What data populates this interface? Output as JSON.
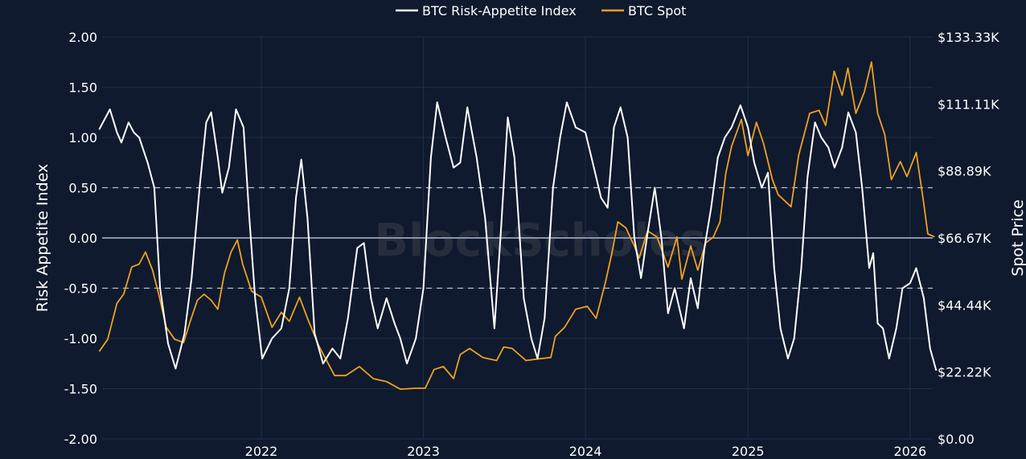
{
  "chart_data": {
    "type": "line",
    "watermark": "BlockScholes",
    "legend": {
      "position": "top-center"
    },
    "grid": true,
    "x_ticks": [
      "2022",
      "2023",
      "2024",
      "2025",
      "2026"
    ],
    "y_left": {
      "label": "Risk Appetite Index",
      "range": [
        -2.0,
        2.0
      ],
      "ticks": [
        "2.00",
        "1.50",
        "1.00",
        "0.50",
        "0.00",
        "-0.50",
        "-1.00",
        "-1.50",
        "-2.00"
      ],
      "reference_lines": [
        {
          "value": 0.5,
          "style": "dashed"
        },
        {
          "value": 0.0,
          "style": "solid"
        },
        {
          "value": -0.5,
          "style": "dashed"
        }
      ]
    },
    "y_right": {
      "label": "Spot Price",
      "range": [
        0,
        133.33
      ],
      "unit": "K USD",
      "ticks": [
        "$133.33K",
        "$111.11K",
        "$88.89K",
        "$66.67K",
        "$44.44K",
        "$22.22K",
        "$0.00"
      ]
    },
    "series": [
      {
        "name": "BTC Risk-Appetite Index",
        "axis": "left",
        "color": "#ffffff",
        "points": [
          [
            "2021-01-01",
            1.08
          ],
          [
            "2021-01-25",
            1.28
          ],
          [
            "2021-02-10",
            1.05
          ],
          [
            "2021-02-20",
            0.95
          ],
          [
            "2021-03-08",
            1.15
          ],
          [
            "2021-03-20",
            1.05
          ],
          [
            "2021-04-01",
            1.0
          ],
          [
            "2021-04-20",
            0.75
          ],
          [
            "2021-05-05",
            0.5
          ],
          [
            "2021-05-18",
            -0.5
          ],
          [
            "2021-06-05",
            -1.05
          ],
          [
            "2021-06-22",
            -1.3
          ],
          [
            "2021-07-12",
            -0.95
          ],
          [
            "2021-07-28",
            -0.4
          ],
          [
            "2021-08-15",
            0.5
          ],
          [
            "2021-08-30",
            1.15
          ],
          [
            "2021-09-10",
            1.25
          ],
          [
            "2021-09-25",
            0.8
          ],
          [
            "2021-10-05",
            0.45
          ],
          [
            "2021-10-20",
            0.7
          ],
          [
            "2021-11-05",
            1.28
          ],
          [
            "2021-11-22",
            1.1
          ],
          [
            "2021-12-05",
            0.2
          ],
          [
            "2021-12-18",
            -0.6
          ],
          [
            "2022-01-03",
            -1.2
          ],
          [
            "2022-01-25",
            -1.0
          ],
          [
            "2022-02-15",
            -0.9
          ],
          [
            "2022-03-05",
            -0.5
          ],
          [
            "2022-03-20",
            0.4
          ],
          [
            "2022-04-01",
            0.78
          ],
          [
            "2022-04-15",
            0.2
          ],
          [
            "2022-05-01",
            -0.95
          ],
          [
            "2022-05-20",
            -1.25
          ],
          [
            "2022-06-10",
            -1.1
          ],
          [
            "2022-06-28",
            -1.2
          ],
          [
            "2022-07-15",
            -0.8
          ],
          [
            "2022-08-05",
            -0.1
          ],
          [
            "2022-08-20",
            -0.05
          ],
          [
            "2022-09-05",
            -0.6
          ],
          [
            "2022-09-20",
            -0.9
          ],
          [
            "2022-10-10",
            -0.6
          ],
          [
            "2022-10-28",
            -0.85
          ],
          [
            "2022-11-10",
            -1.0
          ],
          [
            "2022-11-25",
            -1.25
          ],
          [
            "2022-12-15",
            -1.0
          ],
          [
            "2023-01-01",
            -0.5
          ],
          [
            "2023-01-18",
            0.8
          ],
          [
            "2023-02-01",
            1.35
          ],
          [
            "2023-02-20",
            1.0
          ],
          [
            "2023-03-10",
            0.7
          ],
          [
            "2023-03-25",
            0.75
          ],
          [
            "2023-04-10",
            1.3
          ],
          [
            "2023-05-01",
            0.8
          ],
          [
            "2023-05-20",
            0.2
          ],
          [
            "2023-06-10",
            -0.9
          ],
          [
            "2023-06-25",
            0.1
          ],
          [
            "2023-07-10",
            1.2
          ],
          [
            "2023-07-25",
            0.8
          ],
          [
            "2023-08-15",
            -0.6
          ],
          [
            "2023-09-01",
            -1.0
          ],
          [
            "2023-09-15",
            -1.2
          ],
          [
            "2023-10-01",
            -0.8
          ],
          [
            "2023-10-20",
            0.5
          ],
          [
            "2023-11-05",
            1.0
          ],
          [
            "2023-11-20",
            1.35
          ],
          [
            "2023-12-10",
            1.1
          ],
          [
            "2024-01-01",
            1.05
          ],
          [
            "2024-01-20",
            0.7
          ],
          [
            "2024-02-05",
            0.4
          ],
          [
            "2024-02-20",
            0.3
          ],
          [
            "2024-03-05",
            1.1
          ],
          [
            "2024-03-20",
            1.3
          ],
          [
            "2024-04-05",
            1.0
          ],
          [
            "2024-04-20",
            0.0
          ],
          [
            "2024-05-05",
            -0.4
          ],
          [
            "2024-05-20",
            0.05
          ],
          [
            "2024-06-05",
            0.5
          ],
          [
            "2024-06-20",
            0.0
          ],
          [
            "2024-07-05",
            -0.75
          ],
          [
            "2024-07-20",
            -0.5
          ],
          [
            "2024-08-10",
            -0.9
          ],
          [
            "2024-08-25",
            -0.4
          ],
          [
            "2024-09-10",
            -0.7
          ],
          [
            "2024-09-25",
            -0.1
          ],
          [
            "2024-10-10",
            0.3
          ],
          [
            "2024-10-25",
            0.8
          ],
          [
            "2024-11-10",
            1.0
          ],
          [
            "2024-11-25",
            1.1
          ],
          [
            "2024-12-15",
            1.32
          ],
          [
            "2025-01-01",
            1.1
          ],
          [
            "2025-01-15",
            0.75
          ],
          [
            "2025-02-01",
            0.5
          ],
          [
            "2025-02-15",
            0.65
          ],
          [
            "2025-03-01",
            -0.3
          ],
          [
            "2025-03-15",
            -0.9
          ],
          [
            "2025-04-01",
            -1.2
          ],
          [
            "2025-04-15",
            -1.0
          ],
          [
            "2025-05-01",
            -0.3
          ],
          [
            "2025-05-15",
            0.6
          ],
          [
            "2025-06-01",
            1.15
          ],
          [
            "2025-06-15",
            1.0
          ],
          [
            "2025-07-01",
            0.9
          ],
          [
            "2025-07-15",
            0.7
          ],
          [
            "2025-08-01",
            0.9
          ],
          [
            "2025-08-15",
            1.25
          ],
          [
            "2025-09-01",
            1.05
          ],
          [
            "2025-09-15",
            0.5
          ],
          [
            "2025-10-01",
            -0.3
          ],
          [
            "2025-10-10",
            -0.15
          ],
          [
            "2025-10-20",
            -0.85
          ],
          [
            "2025-11-01",
            -0.9
          ],
          [
            "2025-11-15",
            -1.2
          ],
          [
            "2025-12-01",
            -0.9
          ],
          [
            "2025-12-15",
            -0.5
          ],
          [
            "2026-01-01",
            -0.45
          ],
          [
            "2026-01-15",
            -0.3
          ],
          [
            "2026-02-01",
            -0.6
          ],
          [
            "2026-02-15",
            -1.1
          ],
          [
            "2026-03-01",
            -1.32
          ]
        ]
      },
      {
        "name": "BTC Spot",
        "axis": "right",
        "color": "#f0a020",
        "points": [
          [
            "2021-01-01",
            29
          ],
          [
            "2021-01-20",
            33
          ],
          [
            "2021-02-10",
            45
          ],
          [
            "2021-02-25",
            48
          ],
          [
            "2021-03-15",
            57
          ],
          [
            "2021-04-01",
            58
          ],
          [
            "2021-04-15",
            62
          ],
          [
            "2021-05-01",
            56
          ],
          [
            "2021-05-15",
            48
          ],
          [
            "2021-06-01",
            37
          ],
          [
            "2021-06-20",
            33
          ],
          [
            "2021-07-10",
            32
          ],
          [
            "2021-07-25",
            39
          ],
          [
            "2021-08-10",
            46
          ],
          [
            "2021-08-25",
            48
          ],
          [
            "2021-09-10",
            46
          ],
          [
            "2021-09-25",
            43
          ],
          [
            "2021-10-10",
            55
          ],
          [
            "2021-10-25",
            62
          ],
          [
            "2021-11-08",
            66
          ],
          [
            "2021-11-20",
            58
          ],
          [
            "2021-12-10",
            49
          ],
          [
            "2022-01-01",
            47
          ],
          [
            "2022-01-25",
            37
          ],
          [
            "2022-02-15",
            42
          ],
          [
            "2022-03-05",
            39
          ],
          [
            "2022-03-28",
            47
          ],
          [
            "2022-04-15",
            40
          ],
          [
            "2022-05-10",
            31
          ],
          [
            "2022-06-15",
            21
          ],
          [
            "2022-07-10",
            21
          ],
          [
            "2022-08-10",
            24
          ],
          [
            "2022-09-10",
            20
          ],
          [
            "2022-10-10",
            19
          ],
          [
            "2022-11-10",
            16.5
          ],
          [
            "2022-12-15",
            16.8
          ],
          [
            "2023-01-05",
            16.8
          ],
          [
            "2023-01-25",
            23
          ],
          [
            "2023-02-15",
            24
          ],
          [
            "2023-03-10",
            20
          ],
          [
            "2023-03-25",
            28
          ],
          [
            "2023-04-15",
            30
          ],
          [
            "2023-05-15",
            27
          ],
          [
            "2023-06-15",
            26
          ],
          [
            "2023-07-01",
            30.5
          ],
          [
            "2023-07-20",
            30
          ],
          [
            "2023-08-20",
            26
          ],
          [
            "2023-09-15",
            26.5
          ],
          [
            "2023-10-15",
            27
          ],
          [
            "2023-10-25",
            34
          ],
          [
            "2023-11-15",
            37
          ],
          [
            "2023-12-10",
            43
          ],
          [
            "2024-01-05",
            44
          ],
          [
            "2024-01-25",
            40
          ],
          [
            "2024-02-15",
            52
          ],
          [
            "2024-03-01",
            62
          ],
          [
            "2024-03-14",
            72
          ],
          [
            "2024-04-01",
            70
          ],
          [
            "2024-04-20",
            64
          ],
          [
            "2024-05-01",
            60
          ],
          [
            "2024-05-20",
            69
          ],
          [
            "2024-06-10",
            67
          ],
          [
            "2024-07-05",
            57
          ],
          [
            "2024-07-25",
            67
          ],
          [
            "2024-08-05",
            53
          ],
          [
            "2024-08-25",
            64
          ],
          [
            "2024-09-10",
            56
          ],
          [
            "2024-09-28",
            65
          ],
          [
            "2024-10-15",
            67
          ],
          [
            "2024-10-30",
            72
          ],
          [
            "2024-11-12",
            88
          ],
          [
            "2024-11-25",
            97
          ],
          [
            "2024-12-17",
            106
          ],
          [
            "2025-01-01",
            94
          ],
          [
            "2025-01-20",
            105
          ],
          [
            "2025-02-05",
            98
          ],
          [
            "2025-02-25",
            86
          ],
          [
            "2025-03-10",
            81
          ],
          [
            "2025-04-08",
            77
          ],
          [
            "2025-04-25",
            94
          ],
          [
            "2025-05-20",
            108
          ],
          [
            "2025-06-10",
            109
          ],
          [
            "2025-06-25",
            104
          ],
          [
            "2025-07-14",
            122
          ],
          [
            "2025-08-01",
            114
          ],
          [
            "2025-08-14",
            123
          ],
          [
            "2025-09-01",
            108
          ],
          [
            "2025-09-20",
            115
          ],
          [
            "2025-10-06",
            125
          ],
          [
            "2025-10-20",
            108
          ],
          [
            "2025-11-05",
            101
          ],
          [
            "2025-11-20",
            86
          ],
          [
            "2025-12-10",
            92
          ],
          [
            "2025-12-25",
            87
          ],
          [
            "2026-01-15",
            95
          ],
          [
            "2026-02-01",
            78
          ],
          [
            "2026-02-10",
            68
          ],
          [
            "2026-02-25",
            67
          ]
        ]
      }
    ]
  }
}
